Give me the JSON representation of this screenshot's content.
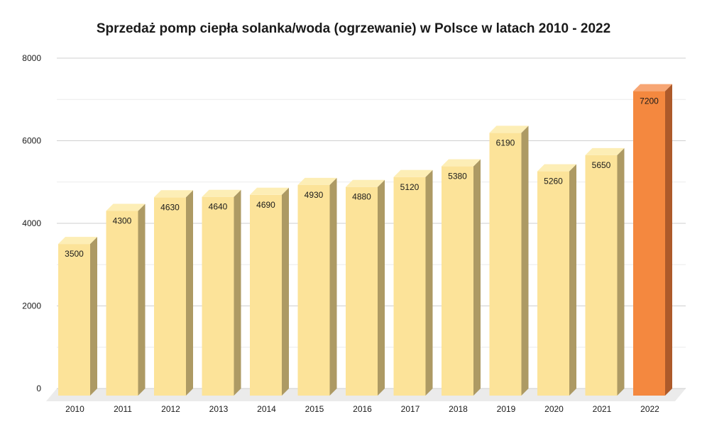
{
  "chart_data": {
    "type": "bar",
    "title": "Sprzedaż pomp ciepła solanka/woda (ogrzewanie) w Polsce w latach 2010 - 2022",
    "xlabel": "",
    "ylabel": "",
    "categories": [
      "2010",
      "2011",
      "2012",
      "2013",
      "2014",
      "2015",
      "2016",
      "2017",
      "2018",
      "2019",
      "2020",
      "2021",
      "2022"
    ],
    "series": [
      {
        "values": [
          3500,
          4300,
          4630,
          4640,
          4690,
          4930,
          4880,
          5120,
          5380,
          6190,
          5260,
          5650,
          7200
        ]
      }
    ],
    "data_labels": [
      "3500",
      "4300",
      "4630",
      "4640",
      "4690",
      "4930",
      "4880",
      "5120",
      "5380",
      "6190",
      "5260",
      "5650",
      "7200"
    ],
    "ylim": [
      0,
      8000
    ],
    "y_ticks": [
      0,
      2000,
      4000,
      6000,
      8000
    ],
    "y_tick_labels": [
      "0",
      "2000",
      "4000",
      "6000",
      "8000"
    ],
    "grid": true,
    "legend": "none",
    "style": "3d-columns",
    "highlight_index": 12,
    "colors": {
      "bar_front": "#fce399",
      "bar_top": "#fdeeb6",
      "bar_side": "#ad9a64",
      "highlight_front": "#f4883f",
      "highlight_top": "#f7a674",
      "highlight_side": "#ad5a2a",
      "grid": "#d9d9d9",
      "floor": "#ebebeb",
      "text": "#1a1a1a"
    }
  }
}
